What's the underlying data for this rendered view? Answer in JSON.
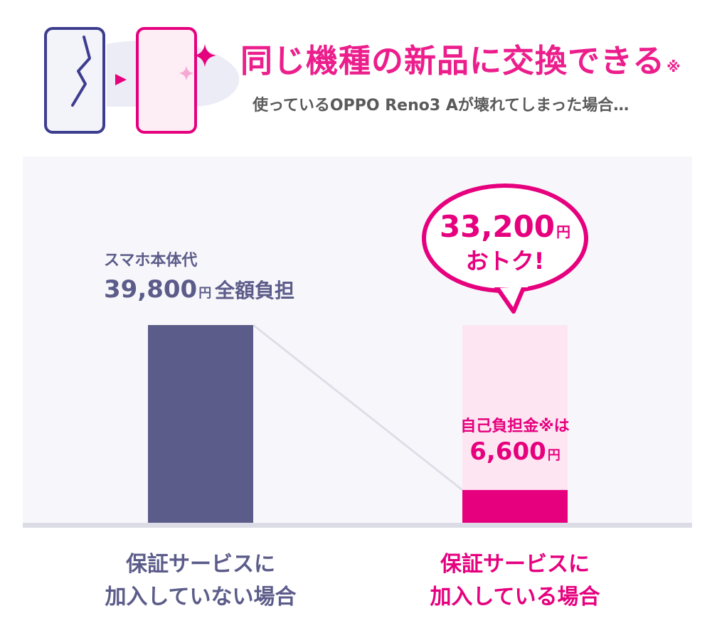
{
  "header": {
    "headline": "同じ機種の新品に交換できる",
    "headline_mark": "※",
    "subhead": "使っているOPPO Reno3 Aが壊れてしまった場合…"
  },
  "icons": {
    "broken_phone": "broken-phone-icon",
    "new_phone": "new-phone-icon",
    "arrow": "play-arrow-icon",
    "sparkle": "sparkle-icon"
  },
  "colors": {
    "navy": "#5c5c8a",
    "pink": "#e6007e",
    "pink_light": "#fde6f2",
    "bg_panel": "#f7f7fb",
    "gray_text": "#5a5a5a"
  },
  "chart_data": {
    "type": "bar",
    "categories": [
      [
        "保証サービスに",
        "加入していない場合"
      ],
      [
        "保証サービスに",
        "加入している場合"
      ]
    ],
    "values": [
      39800,
      6600
    ],
    "reference_value": 39800,
    "ylim": [
      0,
      39800
    ],
    "unit": "円",
    "labels": {
      "left_caption": "スマホ本体代",
      "left_value": "39,800",
      "left_unit": "円",
      "left_suffix": "全額負担",
      "right_caption": "自己負担金※は",
      "right_value": "6,600",
      "right_unit": "円",
      "savings_value": "33,200",
      "savings_unit": "円",
      "savings_text": "おトク!"
    }
  }
}
